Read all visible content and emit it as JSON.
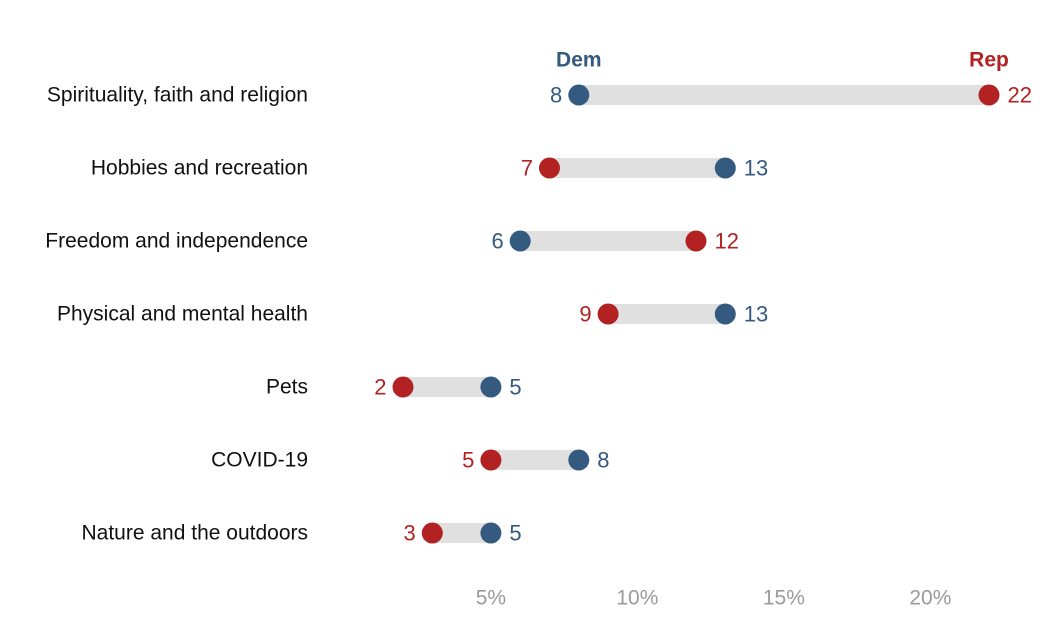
{
  "chart_data": {
    "type": "dumbbell",
    "categories": [
      "Spirituality, faith and religion",
      "Hobbies and recreation",
      "Freedom and independence",
      "Physical and mental health",
      "Pets",
      "COVID-19",
      "Nature and the outdoors"
    ],
    "series": [
      {
        "name": "Dem",
        "color": "#355a80",
        "values": [
          8,
          13,
          6,
          13,
          5,
          8,
          5
        ]
      },
      {
        "name": "Rep",
        "color": "#b22222",
        "values": [
          22,
          7,
          12,
          9,
          2,
          5,
          3
        ]
      }
    ],
    "x_ticks": [
      5,
      10,
      15,
      20
    ],
    "x_tick_labels": [
      "5%",
      "10%",
      "15%",
      "20%"
    ],
    "xlim": [
      0,
      23
    ],
    "bar_color": "#e0e0e0",
    "grid": false,
    "legend": "labels above first row's dots"
  }
}
